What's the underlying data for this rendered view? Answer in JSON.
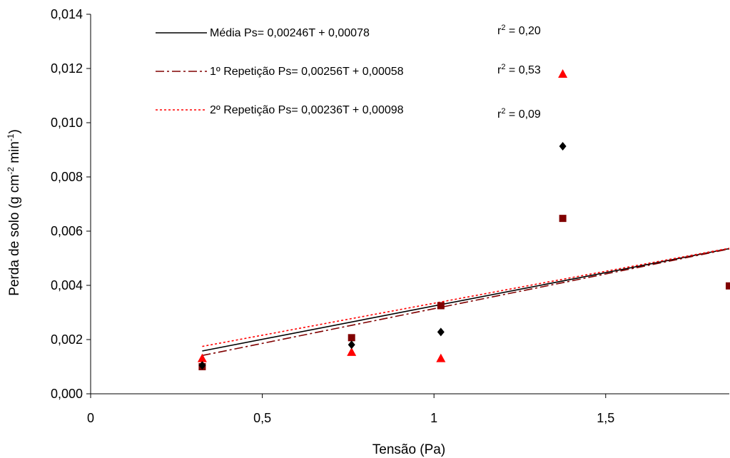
{
  "chart_data": {
    "type": "scatter",
    "xlabel": "Tensão (Pa)",
    "ylabel": "Perda de solo (g cm",
    "ylabel_unit_mid": " min",
    "ylabel_end": ")",
    "ylabel_sup1": "-2",
    "ylabel_sup2": "-1",
    "xlim": [
      0,
      1.86
    ],
    "ylim": [
      0,
      0.014
    ],
    "x_ticks": [
      {
        "v": 0,
        "label": "0"
      },
      {
        "v": 0.5,
        "label": "0,5"
      },
      {
        "v": 1,
        "label": "1"
      },
      {
        "v": 1.5,
        "label": "1,5"
      }
    ],
    "y_ticks": [
      {
        "v": 0,
        "label": "0,000"
      },
      {
        "v": 0.002,
        "label": "0,002"
      },
      {
        "v": 0.004,
        "label": "0,004"
      },
      {
        "v": 0.006,
        "label": "0,006"
      },
      {
        "v": 0.008,
        "label": "0,008"
      },
      {
        "v": 0.01,
        "label": "0,010"
      },
      {
        "v": 0.012,
        "label": "0,012"
      },
      {
        "v": 0.014,
        "label": "0,014"
      }
    ],
    "grid": false,
    "legend_position": "top-left",
    "series": [
      {
        "name": "Média Ps= 0,00246T + 0,00078",
        "r2": "0,20",
        "marker": "diamond",
        "color": "#000000",
        "line_dash": "solid",
        "line_color": "#000000",
        "x": [
          0.325,
          0.76,
          1.02,
          1.375
        ],
        "values": [
          0.00105,
          0.00181,
          0.00228,
          0.00913
        ],
        "fit_slope": 0.00246,
        "fit_intercept": 0.00078
      },
      {
        "name": "1º Repetição Ps= 0,00256T + 0,00058",
        "r2": "0,53",
        "marker": "square",
        "color": "#800000",
        "line_dash": "dashdot",
        "line_color": "#800000",
        "x": [
          0.325,
          0.76,
          1.02,
          1.375,
          1.86
        ],
        "values": [
          0.001,
          0.00207,
          0.00325,
          0.00647,
          0.00398
        ],
        "fit_slope": 0.00256,
        "fit_intercept": 0.00058
      },
      {
        "name": "2º Repetição Ps= 0,00236T + 0,00098",
        "r2": "0,09",
        "marker": "triangle",
        "color": "#ff0000",
        "line_dash": "dotted",
        "line_color": "#ff0000",
        "x": [
          0.325,
          0.76,
          1.02,
          1.375
        ],
        "values": [
          0.0013,
          0.00153,
          0.0013,
          0.01179
        ],
        "fit_slope": 0.00236,
        "fit_intercept": 0.00098
      }
    ]
  }
}
